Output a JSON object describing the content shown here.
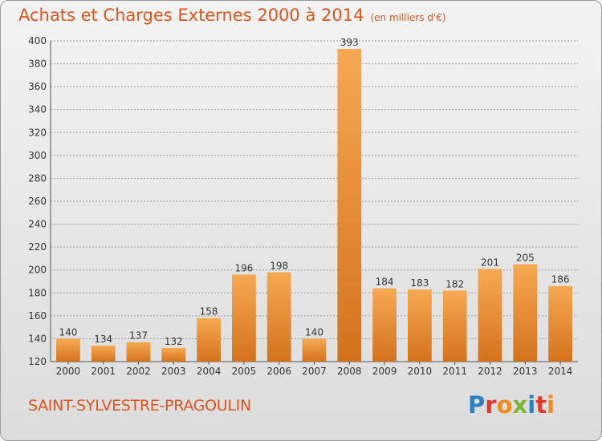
{
  "header": {
    "title": "Achats et Charges Externes 2000 à 2014",
    "unit": "(en milliers d'€)"
  },
  "footer": {
    "commune": "SAINT-SYLVESTRE-PRAGOULIN",
    "logo_letters": [
      "P",
      "r",
      "o",
      "x",
      "i",
      "t",
      "i"
    ],
    "logo_colors": [
      "#2c7fc1",
      "#e5372c",
      "#f08a1c",
      "#7cb43b",
      "#2c7fc1",
      "#e5372c",
      "#f08a1c"
    ]
  },
  "colors": {
    "title": "#e0541c",
    "bar_light": "#f6a952",
    "bar_dark": "#d4721c",
    "grid": "#9c9c9c"
  },
  "chart_data": {
    "type": "bar",
    "categories": [
      "2000",
      "2001",
      "2002",
      "2003",
      "2004",
      "2005",
      "2006",
      "2007",
      "2008",
      "2009",
      "2010",
      "2011",
      "2012",
      "2013",
      "2014"
    ],
    "values": [
      140,
      134,
      137,
      132,
      158,
      196,
      198,
      140,
      393,
      184,
      183,
      182,
      201,
      205,
      186
    ],
    "title": "Achats et Charges Externes 2000 à 2014",
    "ylabel": "",
    "xlabel": "",
    "ylim": [
      120,
      400
    ],
    "yticks": [
      120,
      140,
      160,
      180,
      200,
      220,
      240,
      260,
      280,
      300,
      320,
      340,
      360,
      380,
      400
    ],
    "grid": true,
    "data_labels": true
  }
}
